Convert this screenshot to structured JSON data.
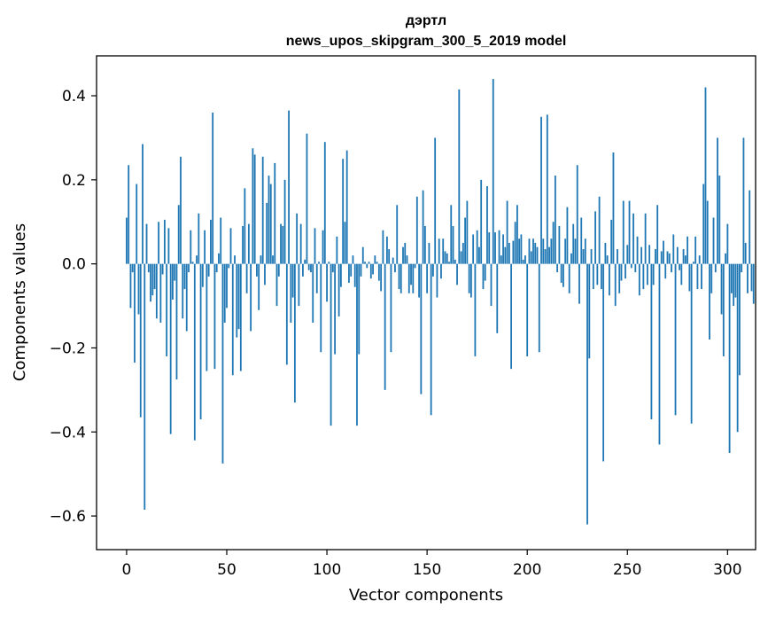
{
  "chart_data": {
    "type": "bar",
    "title": [
      "дэртл",
      "news_upos_skipgram_300_5_2019 model"
    ],
    "xlabel": "Vector components",
    "ylabel": "Components values",
    "xlim": [
      -15,
      314
    ],
    "ylim": [
      -0.68,
      0.495
    ],
    "xticks": [
      0,
      50,
      100,
      150,
      200,
      250,
      300
    ],
    "yticks": [
      -0.6,
      -0.4,
      -0.2,
      0.0,
      0.2,
      0.4
    ],
    "ytick_labels": [
      "−0.6",
      "−0.4",
      "−0.2",
      "0.0",
      "0.2",
      "0.4"
    ],
    "bar_color": "#1f77b4",
    "values": [
      0.11,
      0.235,
      -0.105,
      -0.02,
      -0.235,
      0.19,
      -0.12,
      -0.365,
      0.285,
      -0.585,
      0.095,
      -0.02,
      -0.09,
      -0.075,
      -0.06,
      -0.13,
      0.1,
      -0.14,
      -0.025,
      0.105,
      -0.22,
      0.085,
      -0.405,
      -0.085,
      -0.04,
      -0.275,
      0.14,
      0.255,
      -0.13,
      -0.06,
      -0.16,
      -0.02,
      0.08,
      0.005,
      -0.42,
      0.02,
      0.12,
      -0.37,
      -0.055,
      0.08,
      -0.255,
      -0.03,
      0.105,
      0.36,
      -0.25,
      -0.02,
      0.025,
      0.11,
      -0.475,
      -0.14,
      -0.105,
      -0.01,
      0.085,
      -0.265,
      0.02,
      -0.175,
      -0.155,
      -0.255,
      0.09,
      0.18,
      -0.07,
      0.095,
      -0.16,
      0.275,
      0.26,
      -0.03,
      -0.11,
      0.02,
      0.255,
      -0.05,
      0.145,
      0.21,
      0.19,
      0.02,
      0.24,
      -0.1,
      -0.03,
      0.095,
      0.09,
      0.2,
      -0.24,
      0.365,
      -0.14,
      -0.08,
      -0.33,
      0.12,
      -0.1,
      0.095,
      -0.03,
      0.01,
      0.31,
      -0.015,
      -0.02,
      -0.14,
      0.085,
      -0.07,
      0.005,
      -0.21,
      0.08,
      0.29,
      -0.09,
      0.005,
      -0.385,
      -0.02,
      -0.215,
      0.065,
      -0.125,
      -0.055,
      0.25,
      0.1,
      0.27,
      -0.045,
      -0.03,
      0.02,
      -0.055,
      -0.385,
      -0.215,
      -0.03,
      0.04,
      0.005,
      -0.01,
      0.005,
      -0.035,
      -0.025,
      0.02,
      0.005,
      -0.04,
      -0.065,
      0.08,
      -0.3,
      0.065,
      0.035,
      -0.21,
      0.015,
      -0.02,
      0.14,
      -0.06,
      -0.07,
      0.04,
      0.05,
      0.02,
      -0.07,
      -0.05,
      -0.07,
      -0.01,
      0.16,
      -0.08,
      -0.31,
      0.175,
      0.09,
      -0.07,
      0.05,
      -0.36,
      -0.03,
      0.3,
      -0.08,
      0.06,
      -0.035,
      0.06,
      0.03,
      0.025,
      0.005,
      0.14,
      0.09,
      0.01,
      -0.05,
      0.415,
      0.03,
      0.05,
      0.11,
      0.15,
      -0.07,
      -0.08,
      0.07,
      -0.22,
      0.08,
      0.04,
      0.2,
      -0.06,
      -0.04,
      0.185,
      0.075,
      -0.1,
      0.44,
      0.075,
      -0.165,
      0.08,
      0.02,
      0.07,
      0.04,
      0.15,
      0.05,
      -0.25,
      0.055,
      0.1,
      0.14,
      0.06,
      0.07,
      0.01,
      0.02,
      -0.22,
      0.06,
      0.03,
      0.06,
      0.05,
      0.04,
      -0.21,
      0.35,
      0.06,
      0.035,
      0.355,
      0.04,
      0.06,
      0.1,
      0.21,
      -0.02,
      0.09,
      -0.045,
      -0.055,
      0.06,
      0.135,
      -0.07,
      0.025,
      0.095,
      0.06,
      0.235,
      -0.095,
      0.11,
      0.035,
      0.06,
      -0.62,
      -0.225,
      0.035,
      -0.06,
      0.125,
      -0.05,
      0.16,
      -0.06,
      -0.47,
      0.05,
      0.02,
      -0.075,
      0.105,
      0.265,
      -0.1,
      0.035,
      -0.07,
      -0.04,
      0.15,
      -0.035,
      0.045,
      0.15,
      -0.01,
      0.12,
      -0.02,
      0.065,
      -0.075,
      0.04,
      -0.06,
      0.12,
      -0.05,
      0.045,
      -0.37,
      -0.05,
      0.035,
      0.14,
      -0.43,
      0.03,
      0.055,
      -0.035,
      0.03,
      0.025,
      -0.02,
      0.07,
      -0.36,
      0.04,
      -0.015,
      -0.05,
      0.035,
      0.02,
      0.065,
      -0.065,
      -0.38,
      0.005,
      0.065,
      -0.06,
      0.02,
      -0.06,
      0.19,
      0.42,
      0.15,
      -0.18,
      -0.07,
      0.11,
      -0.02,
      0.3,
      0.21,
      -0.12,
      -0.22,
      0.025,
      0.095,
      -0.45,
      -0.07,
      -0.1,
      -0.08,
      -0.4,
      -0.265,
      -0.02,
      0.3,
      0.05,
      -0.07,
      0.175,
      -0.065,
      -0.095
    ]
  }
}
